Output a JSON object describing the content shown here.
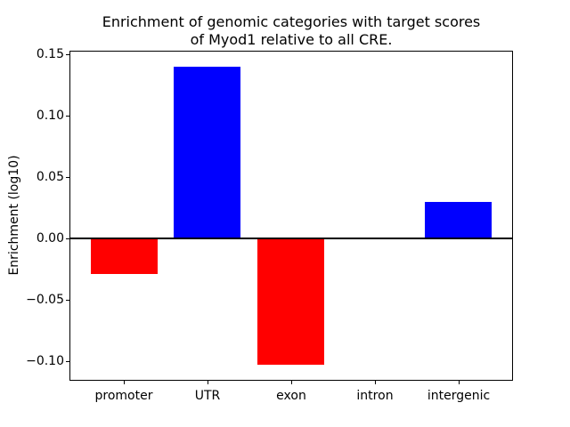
{
  "figure": {
    "background": "#ffffff",
    "title_line1": "Enrichment of genomic categories with target scores",
    "title_line2": "of Myod1 relative to all CRE."
  },
  "chart_data": {
    "type": "bar",
    "title": "Enrichment of genomic categories with target scores\nof Myod1 relative to all CRE.",
    "xlabel": "",
    "ylabel": "Enrichment (log10)",
    "categories": [
      "promoter",
      "UTR",
      "exon",
      "intron",
      "intergenic"
    ],
    "values": [
      -0.029,
      0.14,
      -0.103,
      0.0,
      0.03
    ],
    "bar_colors": [
      "#ff0000",
      "#0000ff",
      "#ff0000",
      "#0000ff",
      "#0000ff"
    ],
    "positive_color": "#0000ff",
    "negative_color": "#ff0000",
    "ylim": [
      -0.1152,
      0.1522
    ],
    "xlim": [
      -0.64,
      4.64
    ],
    "bar_width": 0.8,
    "yticks": [
      -0.1,
      -0.05,
      0.0,
      0.05,
      0.1,
      0.15
    ],
    "ytick_labels": [
      "−0.10",
      "−0.05",
      "0.00",
      "0.05",
      "0.10",
      "0.15"
    ],
    "zero_line": true,
    "grid": false,
    "legend": null,
    "axis_color": "#000000",
    "text_color": "#000000"
  }
}
